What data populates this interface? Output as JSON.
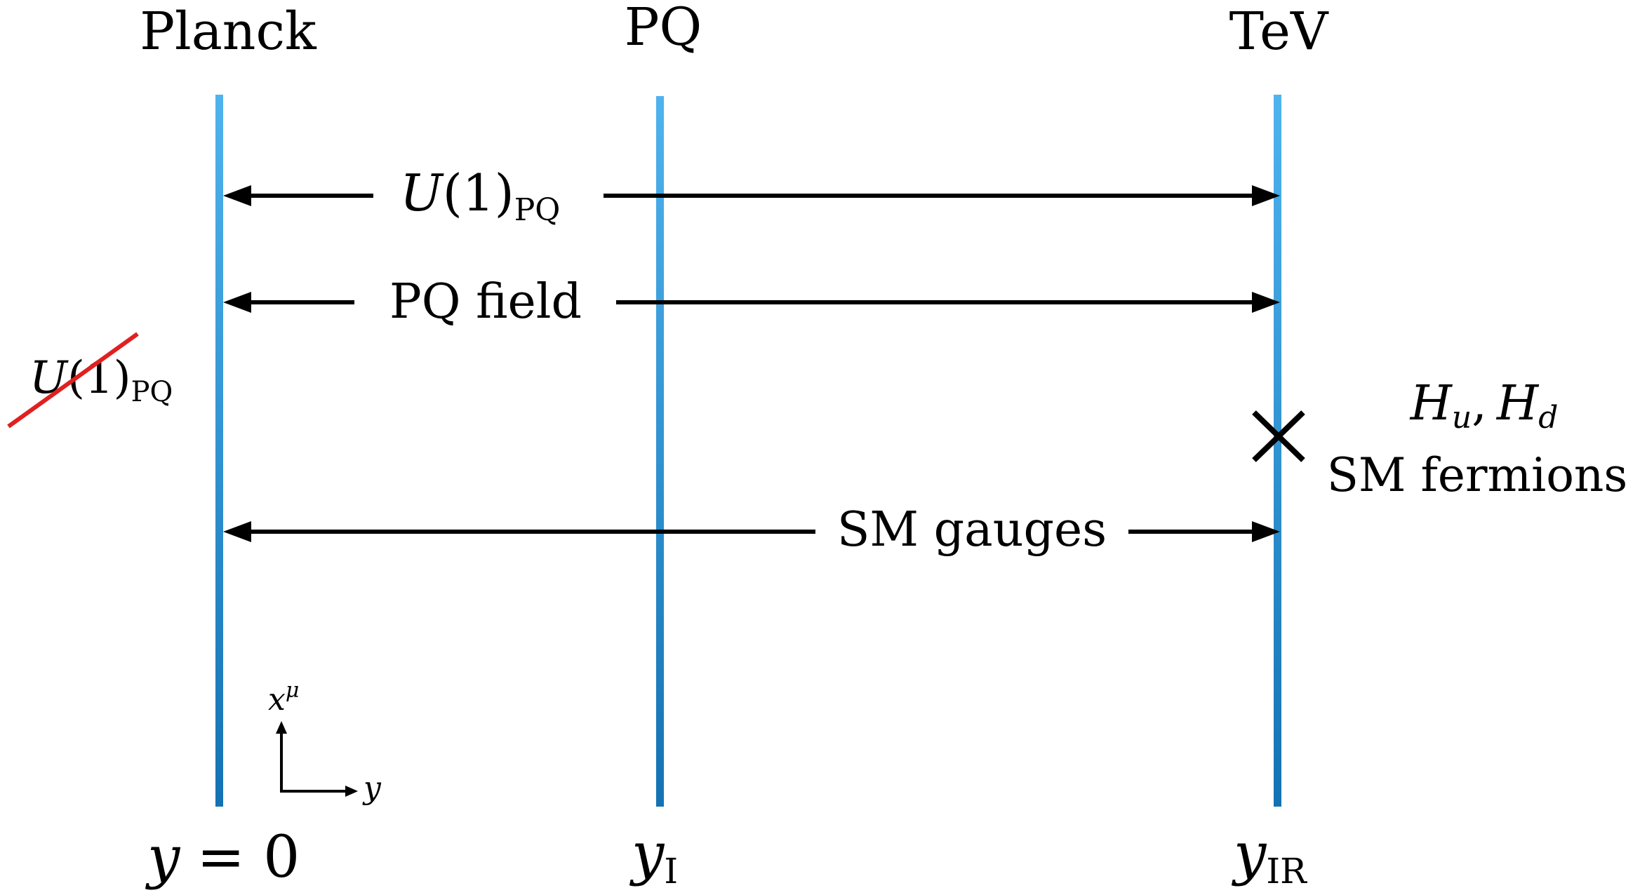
{
  "branes": [
    {
      "id": "planck",
      "top_label": "Planck",
      "bottom_var": "y",
      "bottom_eq": "= 0"
    },
    {
      "id": "pq",
      "top_label": "PQ",
      "bottom_var": "y",
      "bottom_sub": "I"
    },
    {
      "id": "tev",
      "top_label": "TeV",
      "bottom_var": "y",
      "bottom_sub": "IR"
    }
  ],
  "arrows": {
    "u1pq": {
      "main": "U",
      "paren": "(1)",
      "sub": "PQ"
    },
    "pq_field": {
      "label": "PQ field"
    },
    "sm_gauges": {
      "label": "SM gauges"
    }
  },
  "broken_symmetry": {
    "main": "U",
    "paren": "(1)",
    "sub": "PQ"
  },
  "tev_fields": {
    "hu": "H",
    "hu_sub": "u",
    "sep": ",",
    "hd": "H",
    "hd_sub": "d",
    "fermions": "SM fermions"
  },
  "axes": {
    "vertical": "x",
    "vertical_sup": "μ",
    "horizontal": "y"
  },
  "colors": {
    "brane_top": "#4fb3ee",
    "brane_bottom": "#1372b3",
    "strike": "#e02020",
    "ink": "#000000"
  }
}
